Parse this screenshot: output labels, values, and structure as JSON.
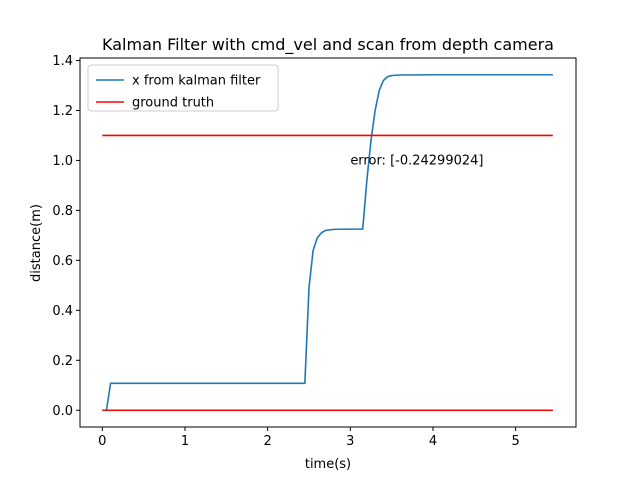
{
  "chart_data": {
    "type": "line",
    "title": "Kalman Filter with cmd_vel and scan from depth camera",
    "xlabel": "time(s)",
    "ylabel": "distance(m)",
    "xlim": [
      -0.27,
      5.73
    ],
    "ylim": [
      -0.067,
      1.41
    ],
    "xticks": [
      0,
      1,
      2,
      3,
      4,
      5
    ],
    "yticks": [
      0.0,
      0.2,
      0.4,
      0.6,
      0.8,
      1.0,
      1.2,
      1.4
    ],
    "xtick_labels": [
      "0",
      "1",
      "2",
      "3",
      "4",
      "5"
    ],
    "ytick_labels": [
      "0.0",
      "0.2",
      "0.4",
      "0.6",
      "0.8",
      "1.0",
      "1.2",
      "1.4"
    ],
    "grid": false,
    "legend": "top-left",
    "series": [
      {
        "name": "x from kalman filter",
        "color": "#1f77b4",
        "points": [
          [
            0.0,
            0.0
          ],
          [
            0.05,
            0.0
          ],
          [
            0.1,
            0.108
          ],
          [
            0.5,
            0.108
          ],
          [
            1.0,
            0.108
          ],
          [
            1.5,
            0.108
          ],
          [
            2.0,
            0.108
          ],
          [
            2.45,
            0.108
          ],
          [
            2.5,
            0.49
          ],
          [
            2.55,
            0.64
          ],
          [
            2.6,
            0.69
          ],
          [
            2.65,
            0.71
          ],
          [
            2.7,
            0.72
          ],
          [
            2.8,
            0.724
          ],
          [
            3.0,
            0.725
          ],
          [
            3.15,
            0.725
          ],
          [
            3.2,
            0.92
          ],
          [
            3.25,
            1.08
          ],
          [
            3.3,
            1.2
          ],
          [
            3.35,
            1.28
          ],
          [
            3.4,
            1.32
          ],
          [
            3.45,
            1.335
          ],
          [
            3.5,
            1.34
          ],
          [
            3.6,
            1.342
          ],
          [
            4.0,
            1.343
          ],
          [
            4.5,
            1.343
          ],
          [
            5.0,
            1.343
          ],
          [
            5.45,
            1.343
          ]
        ]
      },
      {
        "name": "ground truth",
        "color": "#ff0000",
        "segments": [
          [
            [
              0.0,
              1.1
            ],
            [
              5.45,
              1.1
            ]
          ],
          [
            [
              0.0,
              0.0
            ],
            [
              5.45,
              0.0
            ]
          ]
        ]
      }
    ],
    "annotations": [
      {
        "text": "error: [-0.24299024]",
        "x": 3.0,
        "y": 1.0
      }
    ]
  }
}
